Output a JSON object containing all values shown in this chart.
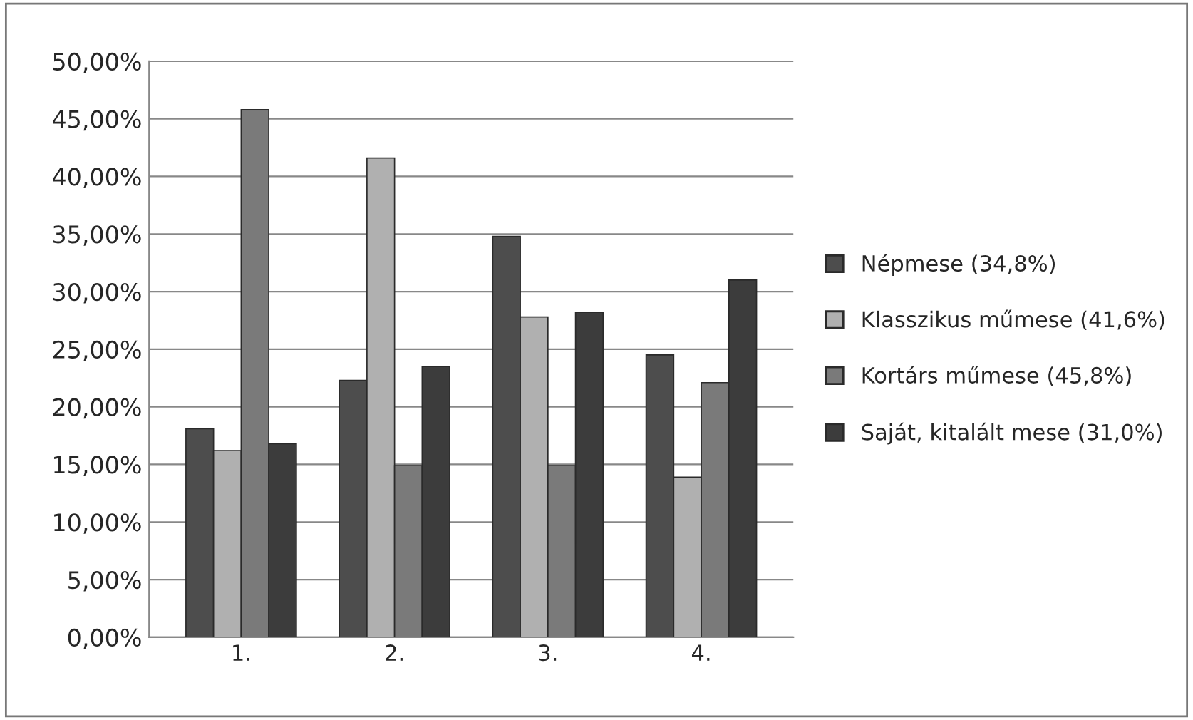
{
  "chart_data": {
    "type": "bar",
    "categories": [
      "1.",
      "2.",
      "3.",
      "4."
    ],
    "series": [
      {
        "name": "Népmese (34,8%)",
        "color": "#4d4d4d",
        "values": [
          18.1,
          22.3,
          34.8,
          24.5
        ]
      },
      {
        "name": "Klasszikus műmese (41,6%)",
        "color": "#b0b0b0",
        "values": [
          16.2,
          41.6,
          27.8,
          13.9
        ]
      },
      {
        "name": "Kortárs műmese (45,8%)",
        "color": "#7a7a7a",
        "values": [
          45.8,
          14.9,
          14.9,
          22.1
        ]
      },
      {
        "name": "Saját, kitalált mese (31,0%)",
        "color": "#3c3c3c",
        "values": [
          16.8,
          23.5,
          28.2,
          31.0
        ]
      }
    ],
    "ylim": [
      0,
      50
    ],
    "yticks": [
      {
        "value": 0,
        "label": "0,00%"
      },
      {
        "value": 5,
        "label": "5,00%"
      },
      {
        "value": 10,
        "label": "10,00%"
      },
      {
        "value": 15,
        "label": "15,00%"
      },
      {
        "value": 20,
        "label": "20,00%"
      },
      {
        "value": 25,
        "label": "25,00%"
      },
      {
        "value": 30,
        "label": "30,00%"
      },
      {
        "value": 35,
        "label": "35,00%"
      },
      {
        "value": 40,
        "label": "40,00%"
      },
      {
        "value": 45,
        "label": "45,00%"
      },
      {
        "value": 50,
        "label": "50,00%"
      }
    ],
    "grid": "y",
    "legend": "right"
  }
}
